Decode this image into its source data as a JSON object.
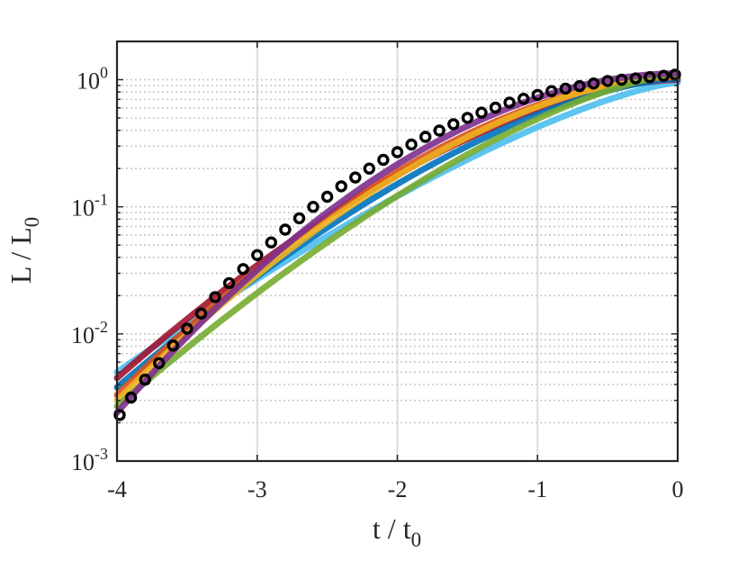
{
  "chart_data": {
    "type": "line",
    "title": "",
    "xlabel": {
      "main": "t / t",
      "sub": "0"
    },
    "ylabel": {
      "main": "L / L",
      "sub": "0"
    },
    "xlim": [
      -4,
      0
    ],
    "ylim": [
      0.001,
      2
    ],
    "yscale": "log",
    "grid": {
      "major_x": true,
      "minor_y": true
    },
    "x_ticks": [
      {
        "value": -4,
        "label": "-4"
      },
      {
        "value": -3,
        "label": "-3"
      },
      {
        "value": -2,
        "label": "-2"
      },
      {
        "value": -1,
        "label": "-1"
      },
      {
        "value": 0,
        "label": "0"
      }
    ],
    "y_ticks": [
      {
        "value": 0.001,
        "base": "10",
        "exp": "-3"
      },
      {
        "value": 0.01,
        "base": "10",
        "exp": "-2"
      },
      {
        "value": 0.1,
        "base": "10",
        "exp": "-1"
      },
      {
        "value": 1,
        "base": "10",
        "exp": "0"
      }
    ],
    "model_curves": {
      "note_count": 7,
      "colors": [
        "#4DBEEE",
        "#A2142F",
        "#0072BD",
        "#D95319",
        "#EDB120",
        "#77AC30",
        "#7E2F8E"
      ],
      "start_at_x_minus4": [
        0.005,
        0.0045,
        0.0038,
        0.0033,
        0.003,
        0.0027,
        0.0024
      ],
      "end_at_x0": [
        0.95,
        1.0,
        1.02,
        1.05,
        1.07,
        1.1,
        1.12
      ],
      "curve_shape_exponent": [
        1.35,
        1.65,
        1.55,
        1.75,
        1.7,
        1.45,
        1.9
      ]
    },
    "series": [
      {
        "marker": "circle",
        "color": "#000000",
        "x": [
          -4.0,
          -3.9,
          -3.8,
          -3.7,
          -3.6,
          -3.5,
          -3.4,
          -3.3,
          -3.2,
          -3.1,
          -3.0,
          -2.9,
          -2.8,
          -2.7,
          -2.6,
          -2.5,
          -2.4,
          -2.3,
          -2.2,
          -2.1,
          -2.0,
          -1.9,
          -1.8,
          -1.7,
          -1.6,
          -1.5,
          -1.4,
          -1.3,
          -1.2,
          -1.1,
          -1.0,
          -0.9,
          -0.8,
          -0.7,
          -0.6,
          -0.5,
          -0.4,
          -0.3,
          -0.2,
          -0.1,
          0.0
        ],
        "y": [
          0.0023,
          0.00316,
          0.00437,
          0.00589,
          0.00811,
          0.011,
          0.0145,
          0.0195,
          0.0251,
          0.0324,
          0.0417,
          0.0525,
          0.0661,
          0.0813,
          0.1,
          0.12,
          0.145,
          0.17,
          0.2,
          0.234,
          0.269,
          0.309,
          0.355,
          0.398,
          0.447,
          0.501,
          0.55,
          0.603,
          0.661,
          0.708,
          0.759,
          0.813,
          0.851,
          0.891,
          0.933,
          0.977,
          1.0,
          1.023,
          1.047,
          1.072,
          1.096
        ]
      }
    ]
  }
}
